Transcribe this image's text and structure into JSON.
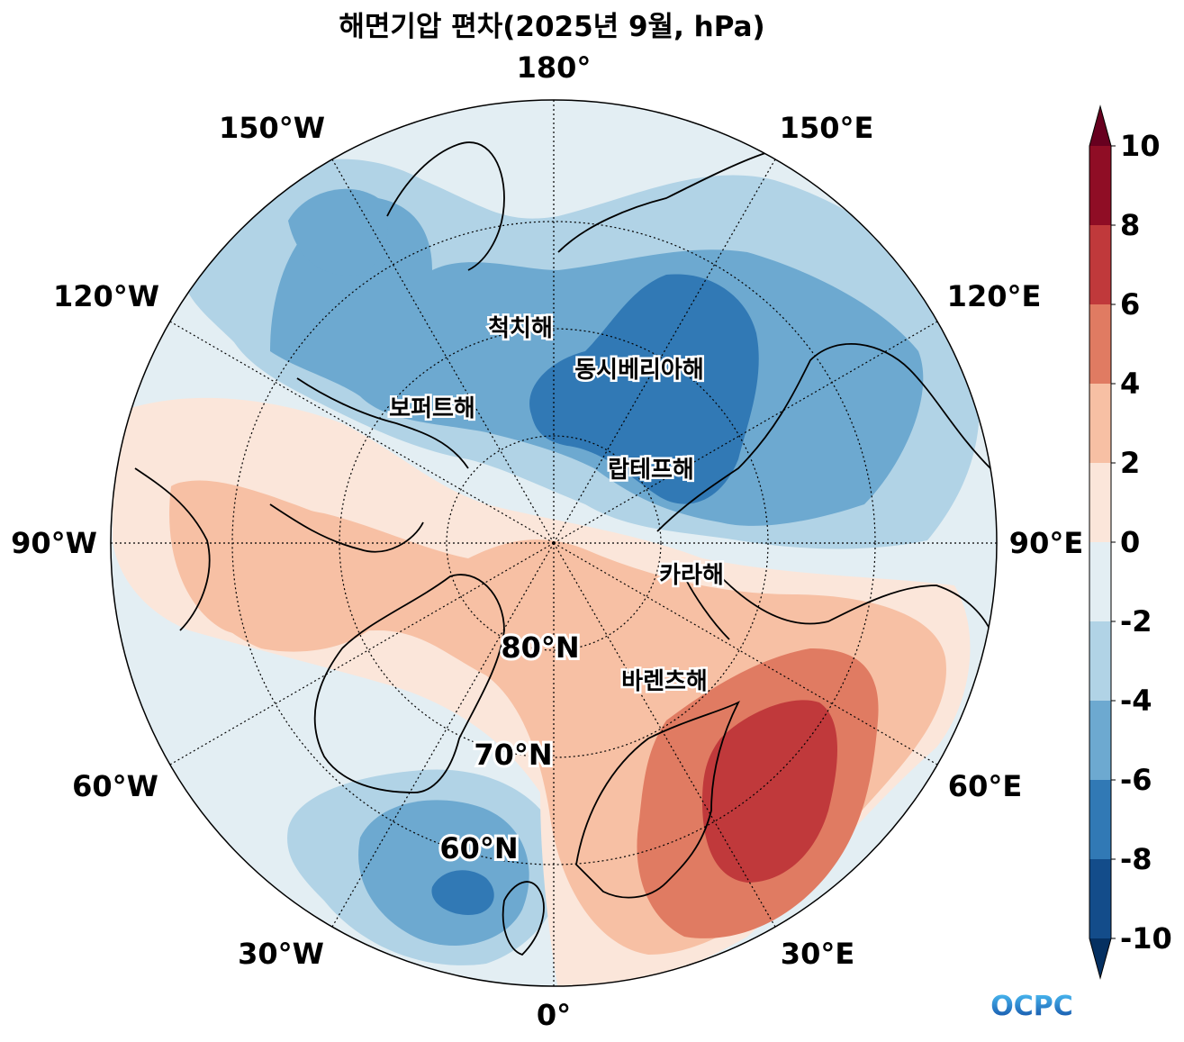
{
  "title": "해면기압 편차(2025년 9월, hPa)",
  "longitude_labels": [
    "180°",
    "150°E",
    "120°E",
    "90°E",
    "60°E",
    "30°E",
    "0°",
    "30°W",
    "60°W",
    "90°W",
    "120°W",
    "150°W"
  ],
  "latitude_labels": [
    "80°N",
    "70°N",
    "60°N"
  ],
  "sea_labels": [
    "척치해",
    "동시베리아해",
    "보퍼트해",
    "랍테프해",
    "카라해",
    "바렌츠해"
  ],
  "colorbar": {
    "ticks": [
      "10",
      "8",
      "6",
      "4",
      "2",
      "0",
      "-2",
      "-4",
      "-6",
      "-8",
      "-10"
    ],
    "colors": [
      "#67001f",
      "#8f0d25",
      "#c0393b",
      "#e07b62",
      "#f7c0a4",
      "#fbe6da",
      "#e3eef3",
      "#b1d3e6",
      "#6da9d0",
      "#3179b5",
      "#134c8a",
      "#053061"
    ]
  },
  "legend_note": "OCPC",
  "colors": {
    "pos_1": "#fbe6da",
    "pos_2": "#f7c0a4",
    "pos_3": "#e07b62",
    "pos_4": "#c0393b",
    "neg_1": "#e3eef3",
    "neg_2": "#b1d3e6",
    "neg_3": "#6da9d0",
    "neg_4": "#3179b5",
    "logo": "#1a8fd0"
  }
}
